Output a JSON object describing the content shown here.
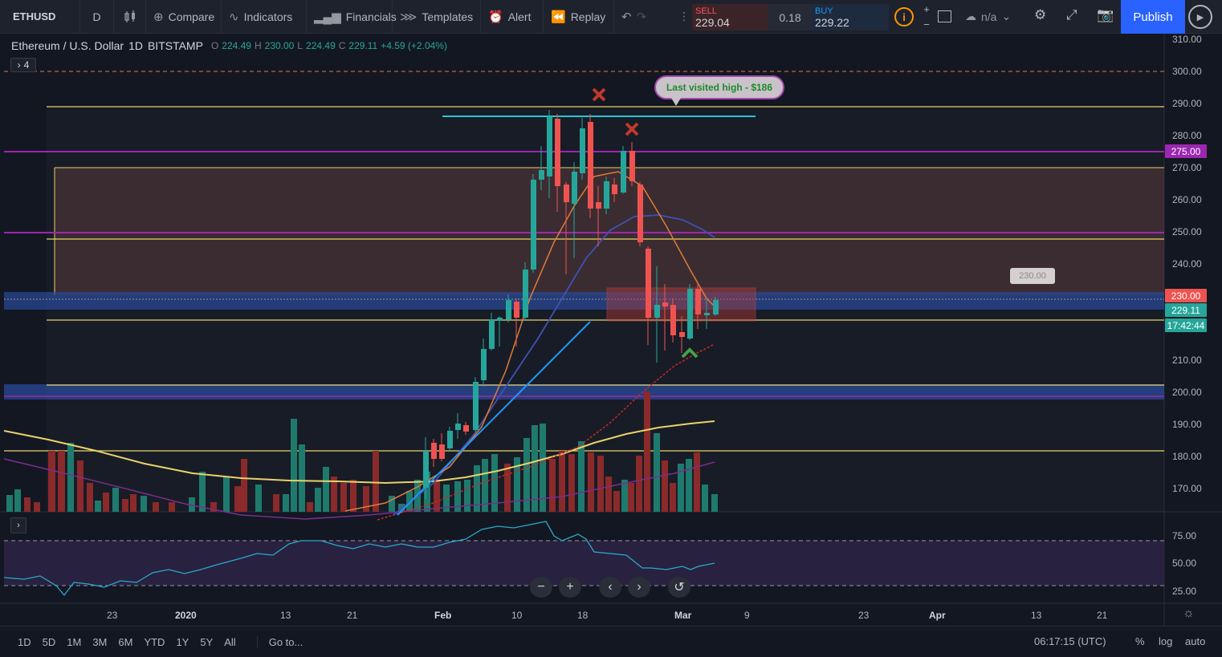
{
  "toolbar": {
    "symbol": "ETHUSD",
    "interval": "D",
    "compare": "Compare",
    "indicators": "Indicators",
    "financials": "Financials",
    "templates": "Templates",
    "alert": "Alert",
    "replay": "Replay",
    "sell_label": "SELL",
    "sell_price": "229.04",
    "spread": "0.18",
    "buy_label": "BUY",
    "buy_price": "229.22",
    "weather_value": "n/a",
    "publish": "Publish"
  },
  "legend": {
    "title": "Ethereum / U.S. Dollar",
    "interval": "1D",
    "exchange": "BITSTAMP",
    "open_label": "O",
    "open": "224.49",
    "high_label": "H",
    "high": "230.00",
    "low_label": "L",
    "low": "224.49",
    "close_label": "C",
    "close": "229.11",
    "change": "+4.59 (+2.04%)",
    "indicator_count": "4"
  },
  "annotations": {
    "callout": "Last visited high - $186",
    "price_note": "230.00"
  },
  "price_axis": {
    "labels": [
      "310.00",
      "300.00",
      "290.00",
      "280.00",
      "270.00",
      "260.00",
      "250.00",
      "240.00",
      "230.00",
      "220.00",
      "210.00",
      "200.00",
      "190.00",
      "180.00",
      "170.00"
    ],
    "tags": {
      "purple_level": "275.00",
      "red_level": "230.00",
      "last_price": "229.11",
      "countdown": "17:42:44"
    },
    "colors": {
      "purple": "#9c27b0",
      "red": "#ef5350",
      "teal": "#26a69a"
    }
  },
  "rsi_axis": {
    "labels": [
      "75.00",
      "50.00",
      "25.00"
    ]
  },
  "time_axis": {
    "labels": [
      {
        "text": "23",
        "bold": false
      },
      {
        "text": "2020",
        "bold": true
      },
      {
        "text": "13",
        "bold": false
      },
      {
        "text": "21",
        "bold": false
      },
      {
        "text": "Feb",
        "bold": true
      },
      {
        "text": "10",
        "bold": false
      },
      {
        "text": "18",
        "bold": false
      },
      {
        "text": "Mar",
        "bold": true
      },
      {
        "text": "9",
        "bold": false
      },
      {
        "text": "23",
        "bold": false
      },
      {
        "text": "Apr",
        "bold": true
      },
      {
        "text": "13",
        "bold": false
      },
      {
        "text": "21",
        "bold": false
      }
    ]
  },
  "bottombar": {
    "ranges": [
      "1D",
      "5D",
      "1M",
      "3M",
      "6M",
      "YTD",
      "1Y",
      "5Y",
      "All"
    ],
    "goto": "Go to...",
    "time": "06:17:15 (UTC)",
    "percent": "%",
    "log": "log",
    "auto": "auto"
  },
  "nav": {
    "zoom_out": "−",
    "zoom_in": "+",
    "left": "‹",
    "right": "›",
    "reset": "↺"
  }
}
